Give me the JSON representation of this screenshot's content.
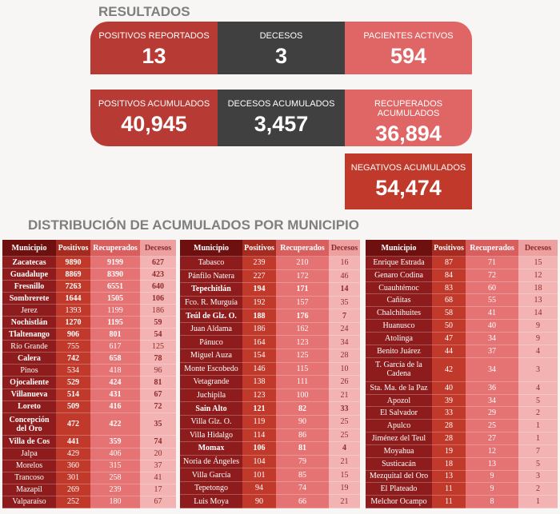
{
  "header": {
    "title": "RESULTADOS"
  },
  "cards": [
    {
      "label": "POSITIVOS REPORTADOS",
      "value": "13"
    },
    {
      "label": "DECESOS",
      "value": "3"
    },
    {
      "label": "PACIENTES ACTIVOS",
      "value": "594"
    },
    {
      "label": "POSITIVOS ACUMULADOS",
      "value": "40,945"
    },
    {
      "label": "DECESOS ACUMULADOS",
      "value": "3,457"
    },
    {
      "label": "RECUPERADOS ACUMULADOS",
      "value": "36,894"
    },
    {
      "label": "NEGATIVOS ACUMULADOS",
      "value": "54,474"
    }
  ],
  "section": {
    "title": "DISTRIBUCIÓN DE ACUMULADOS POR MUNICIPIO"
  },
  "tables": [
    {
      "columns": [
        "Municipio",
        "Positivos",
        "Recuperados",
        "Decesos"
      ],
      "bold_rows": [
        0,
        1,
        2,
        3,
        5,
        6,
        8,
        10,
        11,
        12,
        13,
        14
      ],
      "rows": [
        [
          "Zacatecas",
          9890,
          9199,
          627
        ],
        [
          "Guadalupe",
          8869,
          8390,
          423
        ],
        [
          "Fresnillo",
          7263,
          6551,
          640
        ],
        [
          "Sombrerete",
          1644,
          1505,
          106
        ],
        [
          "Jerez",
          1393,
          1199,
          186
        ],
        [
          "Nochistlán",
          1270,
          1195,
          59
        ],
        [
          "Tlaltenango",
          906,
          801,
          54
        ],
        [
          "Río Grande",
          755,
          617,
          125
        ],
        [
          "Calera",
          742,
          658,
          78
        ],
        [
          "Pinos",
          534,
          418,
          96
        ],
        [
          "Ojocaliente",
          529,
          424,
          81
        ],
        [
          "Villanueva",
          514,
          431,
          67
        ],
        [
          "Loreto",
          509,
          416,
          72
        ],
        [
          "Concepción del Oro",
          472,
          422,
          35
        ],
        [
          "Villa de Cos",
          441,
          359,
          74
        ],
        [
          "Jalpa",
          429,
          406,
          20
        ],
        [
          "Morelos",
          360,
          315,
          37
        ],
        [
          "Trancoso",
          301,
          258,
          41
        ],
        [
          "Mazapil",
          269,
          239,
          17
        ],
        [
          "Valparaíso",
          252,
          180,
          67
        ]
      ]
    },
    {
      "columns": [
        "Municipio",
        "Positivos",
        "Recuperados",
        "Decesos"
      ],
      "bold_rows": [
        2,
        4,
        11,
        14
      ],
      "rows": [
        [
          "Tabasco",
          239,
          210,
          16
        ],
        [
          "Pánfilo Natera",
          227,
          172,
          46
        ],
        [
          "Tepechitlán",
          194,
          171,
          14
        ],
        [
          "Fco. R. Murguía",
          192,
          157,
          35
        ],
        [
          "Teúl de Glz. O.",
          188,
          176,
          7
        ],
        [
          "Juan Aldama",
          186,
          162,
          24
        ],
        [
          "Pánuco",
          164,
          123,
          34
        ],
        [
          "Miguel Auza",
          154,
          125,
          28
        ],
        [
          "Monte Escobedo",
          146,
          115,
          10
        ],
        [
          "Vetagrande",
          138,
          111,
          26
        ],
        [
          "Juchipila",
          123,
          100,
          21
        ],
        [
          "Sain Alto",
          121,
          82,
          33
        ],
        [
          "Villa Glz. O.",
          119,
          90,
          25
        ],
        [
          "Villa Hidalgo",
          114,
          86,
          25
        ],
        [
          "Momax",
          106,
          81,
          4
        ],
        [
          "Noria de Ángeles",
          104,
          79,
          21
        ],
        [
          "Villa García",
          101,
          85,
          15
        ],
        [
          "Tepetongo",
          94,
          74,
          19
        ],
        [
          "Luis Moya",
          90,
          66,
          21
        ]
      ]
    },
    {
      "columns": [
        "Municipio",
        "Positivos",
        "Recuperados",
        "Decesos"
      ],
      "bold_rows": [],
      "rows": [
        [
          "Enrique Estrada",
          87,
          71,
          15
        ],
        [
          "Genaro Codina",
          84,
          72,
          12
        ],
        [
          "Cuauhtémoc",
          83,
          60,
          18
        ],
        [
          "Cañitas",
          68,
          55,
          13
        ],
        [
          "Chalchihuites",
          58,
          41,
          14
        ],
        [
          "Huanusco",
          50,
          40,
          9
        ],
        [
          "Atolinga",
          47,
          34,
          9
        ],
        [
          "Benito Juárez",
          44,
          37,
          4
        ],
        [
          "T. García de la Cadena",
          42,
          34,
          3
        ],
        [
          "Sta. Ma. de la Paz",
          40,
          36,
          4
        ],
        [
          "Apozol",
          39,
          34,
          5
        ],
        [
          "El Salvador",
          33,
          29,
          2
        ],
        [
          "Apulco",
          28,
          25,
          1
        ],
        [
          "Jiménez del Teul",
          28,
          27,
          1
        ],
        [
          "Moyahua",
          19,
          12,
          7
        ],
        [
          "Susticacán",
          18,
          13,
          5
        ],
        [
          "Mezquital del Oro",
          13,
          9,
          3
        ],
        [
          "El Plateado",
          11,
          9,
          2
        ],
        [
          "Melchor Ocampo",
          11,
          8,
          1
        ]
      ]
    }
  ]
}
